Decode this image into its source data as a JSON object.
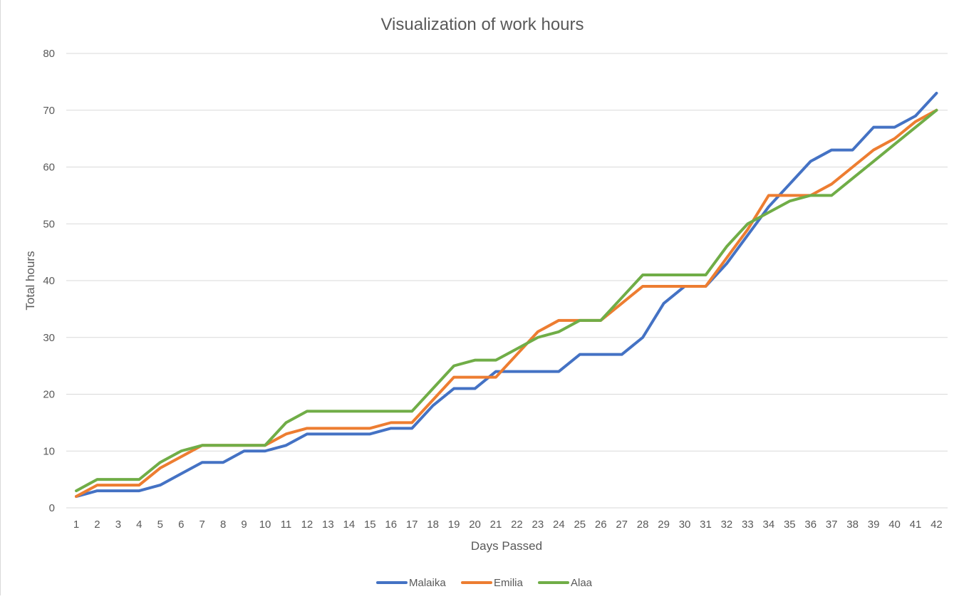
{
  "chart_data": {
    "type": "line",
    "title": "Visualization of work hours",
    "xlabel": "Days Passed",
    "ylabel": "Total hours",
    "ylim": [
      0,
      80
    ],
    "yticks": [
      0,
      10,
      20,
      30,
      40,
      50,
      60,
      70,
      80
    ],
    "grid": true,
    "legend_position": "bottom",
    "categories": [
      "1",
      "2",
      "3",
      "4",
      "5",
      "6",
      "7",
      "8",
      "9",
      "10",
      "11",
      "12",
      "13",
      "14",
      "15",
      "16",
      "17",
      "18",
      "19",
      "20",
      "21",
      "22",
      "23",
      "24",
      "25",
      "26",
      "27",
      "28",
      "29",
      "30",
      "31",
      "32",
      "33",
      "34",
      "35",
      "36",
      "37",
      "38",
      "39",
      "40",
      "41",
      "42"
    ],
    "series": [
      {
        "name": "Malaika",
        "color": "#4472c4",
        "values": [
          2,
          3,
          3,
          3,
          4,
          6,
          8,
          8,
          10,
          10,
          11,
          13,
          13,
          13,
          13,
          14,
          14,
          18,
          21,
          21,
          24,
          24,
          24,
          24,
          27,
          27,
          27,
          30,
          36,
          39,
          39,
          43,
          48,
          53,
          57,
          61,
          63,
          63,
          67,
          67,
          69,
          73
        ]
      },
      {
        "name": "Emilia",
        "color": "#ed7d31",
        "values": [
          2,
          4,
          4,
          4,
          7,
          9,
          11,
          11,
          11,
          11,
          13,
          14,
          14,
          14,
          14,
          15,
          15,
          19,
          23,
          23,
          23,
          27,
          31,
          33,
          33,
          33,
          36,
          39,
          39,
          39,
          39,
          44,
          49,
          55,
          55,
          55,
          57,
          60,
          63,
          65,
          68,
          70
        ]
      },
      {
        "name": "Alaa",
        "color": "#70ad47",
        "values": [
          3,
          5,
          5,
          5,
          8,
          10,
          11,
          11,
          11,
          11,
          15,
          17,
          17,
          17,
          17,
          17,
          17,
          21,
          25,
          26,
          26,
          28,
          30,
          31,
          33,
          33,
          37,
          41,
          41,
          41,
          41,
          46,
          50,
          52,
          54,
          55,
          55,
          58,
          61,
          64,
          67,
          70
        ]
      }
    ]
  }
}
